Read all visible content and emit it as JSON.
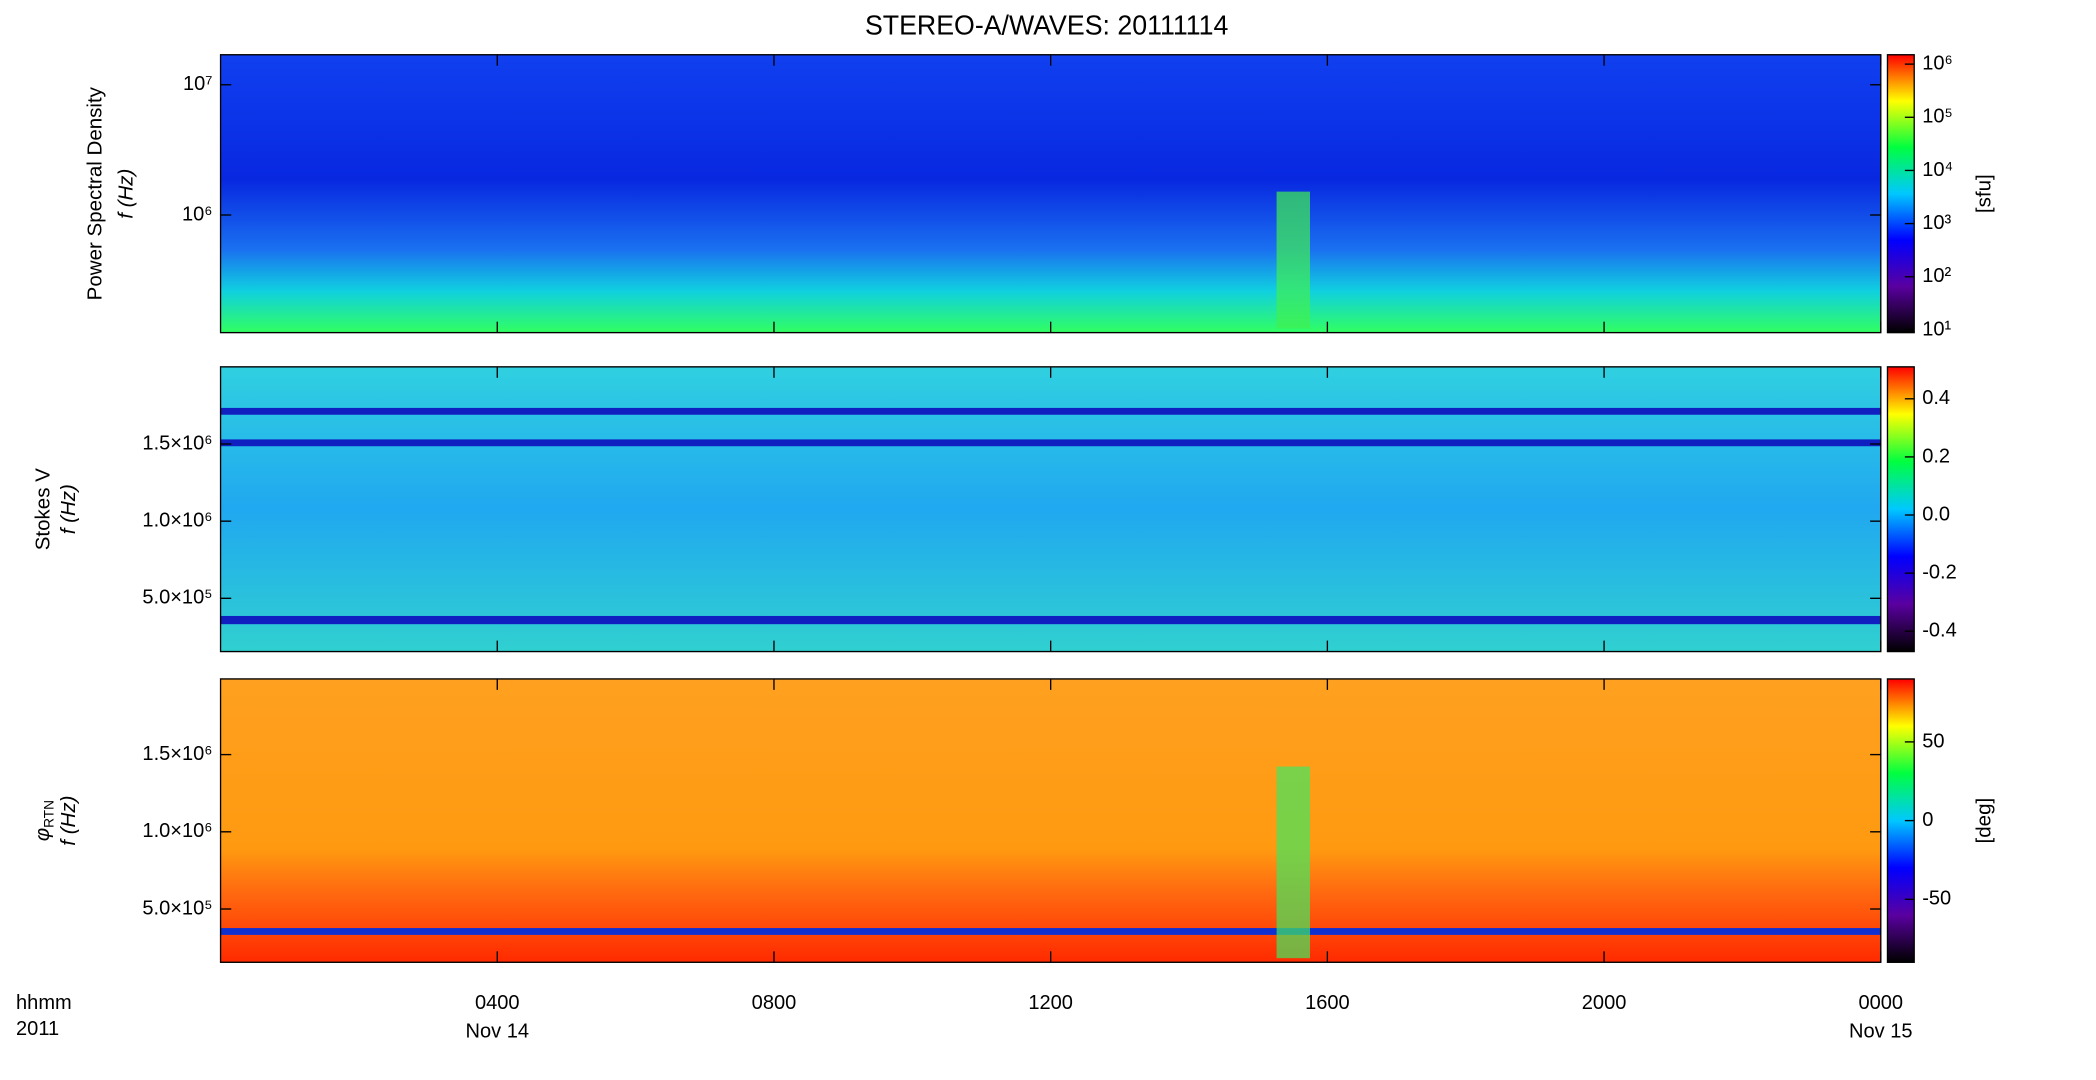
{
  "chart_data": [
    {
      "type": "heatmap",
      "title": "STEREO-A/WAVES: 20111114",
      "ylabel": "Power Spectral Density",
      "ylabel2": "f (Hz)",
      "ylog": true,
      "ylim": [
        125000,
        17000000
      ],
      "yticks": [
        {
          "value": 1000000,
          "label": "10⁶"
        },
        {
          "value": 10000000,
          "label": "10⁷"
        }
      ],
      "xlim": [
        0,
        24
      ],
      "clog": true,
      "clim": [
        8.9,
        1500000
      ],
      "cticks": [
        {
          "value": 10,
          "label": "10¹"
        },
        {
          "value": 100,
          "label": "10²"
        },
        {
          "value": 1000,
          "label": "10³"
        },
        {
          "value": 10000,
          "label": "10⁴"
        },
        {
          "value": 100000,
          "label": "10⁵"
        },
        {
          "value": 1000000,
          "label": "10⁶"
        }
      ],
      "colorbar_label": "[sfu]",
      "colormap": [
        "#000000",
        "#5a00a0",
        "#0000ff",
        "#00c8ff",
        "#00ff40",
        "#ffff00",
        "#ff0000"
      ]
    },
    {
      "type": "heatmap",
      "ylabel": "Stokes V",
      "ylabel2": "f (Hz)",
      "ylog": false,
      "ylim": [
        155000,
        2000000
      ],
      "yticks": [
        {
          "value": 500000,
          "label": "5.0×10⁵"
        },
        {
          "value": 1000000,
          "label": "1.0×10⁶"
        },
        {
          "value": 1500000,
          "label": "1.5×10⁶"
        }
      ],
      "xlim": [
        0,
        24
      ],
      "clog": false,
      "clim": [
        -0.47,
        0.51
      ],
      "cticks": [
        -0.4,
        -0.2,
        {
          "value": 0,
          "label": "0.0"
        },
        0.2,
        0.4
      ],
      "colormap": [
        "#000000",
        "#5a00a0",
        "#0000ff",
        "#00c8ff",
        "#00ff40",
        "#ffff00",
        "#ff0000"
      ]
    },
    {
      "type": "heatmap",
      "ylabel_symbol": "φ",
      "ylabel_subscript": "RTN",
      "ylabel2": "f (Hz)",
      "ylog": false,
      "ylim": [
        155000,
        1990000
      ],
      "yticks": [
        {
          "value": 500000,
          "label": "5.0×10⁵"
        },
        {
          "value": 1000000,
          "label": "1.0×10⁶"
        },
        {
          "value": 1500000,
          "label": "1.5×10⁶"
        }
      ],
      "xlim": [
        0,
        24
      ],
      "xticks": [
        {
          "value": 4,
          "label": "0400"
        },
        {
          "value": 8,
          "label": "0800"
        },
        {
          "value": 12,
          "label": "1200"
        },
        {
          "value": 16,
          "label": "1600"
        },
        {
          "value": 20,
          "label": "2000"
        },
        {
          "value": 24,
          "label": "0000"
        }
      ],
      "x_date_labels": [
        {
          "value": 4,
          "label": "Nov 14"
        },
        {
          "value": 24,
          "label": "Nov 15"
        }
      ],
      "x_label": "hhmm",
      "x_sublabel": "2011",
      "clog": false,
      "clim": [
        -90,
        90
      ],
      "cticks": [
        -50,
        0,
        50
      ],
      "colorbar_label": "[deg]",
      "colormap": [
        "#000000",
        "#5a00a0",
        "#0000ff",
        "#00c8ff",
        "#00ff40",
        "#ffff00",
        "#ff0000"
      ]
    }
  ]
}
